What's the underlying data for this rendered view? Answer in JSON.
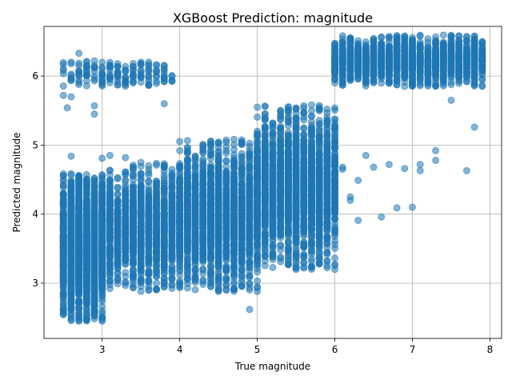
{
  "chart_data": {
    "type": "scatter",
    "title": "XGBoost Prediction: magnitude",
    "xlabel": "True magnitude",
    "ylabel": "Predicted magnitude",
    "xlim": [
      2.25,
      8.15
    ],
    "ylim": [
      2.2,
      6.72
    ],
    "xticks": [
      3,
      4,
      5,
      6,
      7,
      8
    ],
    "yticks": [
      3,
      4,
      5,
      6
    ],
    "grid": true,
    "point_color": "#1f77b4",
    "point_alpha": 0.55,
    "clusters": [
      {
        "x_range": [
          2.5,
          3.0
        ],
        "y_range": [
          2.45,
          4.6
        ],
        "count": 2600,
        "x_dist": "uniform",
        "y_dist": "dense"
      },
      {
        "x_range": [
          3.0,
          4.0
        ],
        "y_range": [
          2.88,
          4.75
        ],
        "count": 1600,
        "x_dist": "uniform",
        "y_dist": "dense"
      },
      {
        "x_range": [
          4.0,
          5.0
        ],
        "y_range": [
          2.88,
          5.1
        ],
        "count": 2200,
        "x_dist": "uniform",
        "y_dist": "dense"
      },
      {
        "x_range": [
          5.0,
          6.0
        ],
        "y_range": [
          3.2,
          5.6
        ],
        "count": 2400,
        "x_dist": "uniform",
        "y_dist": "dense"
      },
      {
        "x_range": [
          6.0,
          7.9
        ],
        "y_range": [
          5.85,
          6.6
        ],
        "count": 1900,
        "x_dist": "uniform",
        "y_dist": "dense"
      },
      {
        "x_range": [
          2.5,
          3.9
        ],
        "y_range": [
          5.85,
          6.22
        ],
        "count": 170,
        "x_dist": "uniform",
        "y_dist": "uniform"
      }
    ],
    "series": [
      {
        "x": [
          2.6,
          2.9,
          2.9,
          3.8,
          2.6,
          2.5,
          2.55,
          2.7,
          2.9,
          3.0,
          3.1,
          3.3,
          3.5,
          3.7,
          3.8,
          4.9,
          6.2,
          6.2,
          6.3,
          6.6,
          6.8,
          7.0,
          7.1,
          7.1,
          7.3,
          7.3,
          7.7,
          7.8,
          6.1,
          6.3,
          6.5,
          6.7,
          6.9,
          7.5,
          6.0,
          6.1,
          6.4
        ],
        "y": [
          4.84,
          5.57,
          5.45,
          5.6,
          5.7,
          5.72,
          5.54,
          6.33,
          6.0,
          4.81,
          4.85,
          4.82,
          4.75,
          4.71,
          4.62,
          2.62,
          4.25,
          4.2,
          3.91,
          3.96,
          4.09,
          4.1,
          4.63,
          4.72,
          4.78,
          4.92,
          4.63,
          5.26,
          4.68,
          4.49,
          4.68,
          4.72,
          4.66,
          5.65,
          4.55,
          4.65,
          4.85
        ]
      }
    ]
  }
}
